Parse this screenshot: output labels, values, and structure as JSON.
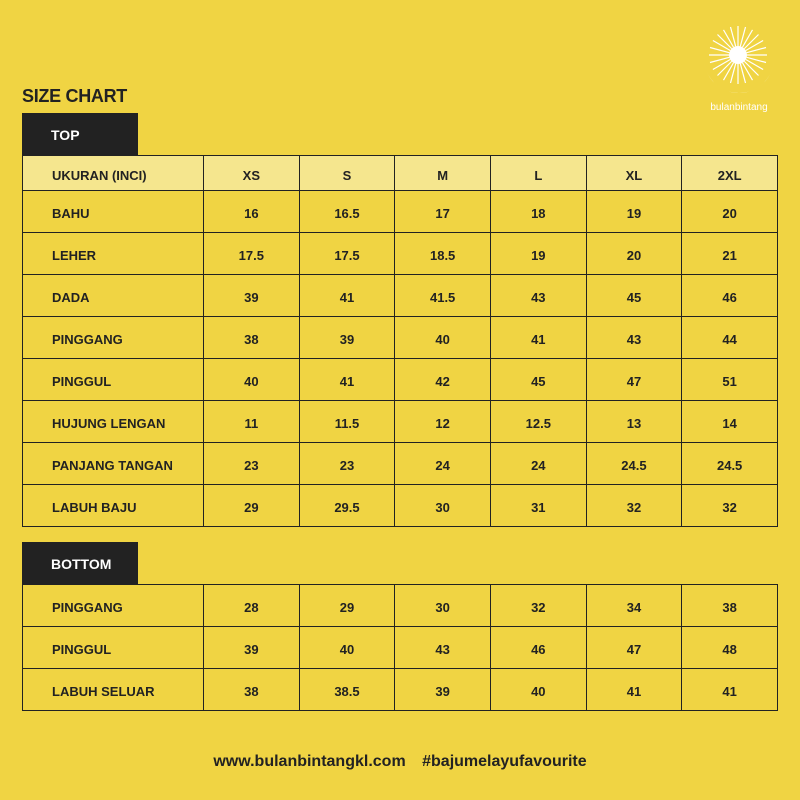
{
  "brand": {
    "name": "bulanbintang",
    "colors": {
      "background": "#f0d443",
      "header": "#f5e68e",
      "dark": "#222222"
    }
  },
  "title": "SIZE CHART",
  "top": {
    "label": "TOP",
    "headers": [
      "UKURAN (INCI)",
      "XS",
      "S",
      "M",
      "L",
      "XL",
      "2XL"
    ],
    "rows": [
      [
        "BAHU",
        "16",
        "16.5",
        "17",
        "18",
        "19",
        "20"
      ],
      [
        "LEHER",
        "17.5",
        "17.5",
        "18.5",
        "19",
        "20",
        "21"
      ],
      [
        "DADA",
        "39",
        "41",
        "41.5",
        "43",
        "45",
        "46"
      ],
      [
        "PINGGANG",
        "38",
        "39",
        "40",
        "41",
        "43",
        "44"
      ],
      [
        "PINGGUL",
        "40",
        "41",
        "42",
        "45",
        "47",
        "51"
      ],
      [
        "HUJUNG LENGAN",
        "11",
        "11.5",
        "12",
        "12.5",
        "13",
        "14"
      ],
      [
        "PANJANG TANGAN",
        "23",
        "23",
        "24",
        "24",
        "24.5",
        "24.5"
      ],
      [
        "LABUH BAJU",
        "29",
        "29.5",
        "30",
        "31",
        "32",
        "32"
      ]
    ]
  },
  "bottom": {
    "label": "BOTTOM",
    "rows": [
      [
        "PINGGANG",
        "28",
        "29",
        "30",
        "32",
        "34",
        "38"
      ],
      [
        "PINGGUL",
        "39",
        "40",
        "43",
        "46",
        "47",
        "48"
      ],
      [
        "LABUH SELUAR",
        "38",
        "38.5",
        "39",
        "40",
        "41",
        "41"
      ]
    ]
  },
  "footer": {
    "website": "www.bulanbintangkl.com",
    "hashtag": "#bajumelayufavourite"
  }
}
